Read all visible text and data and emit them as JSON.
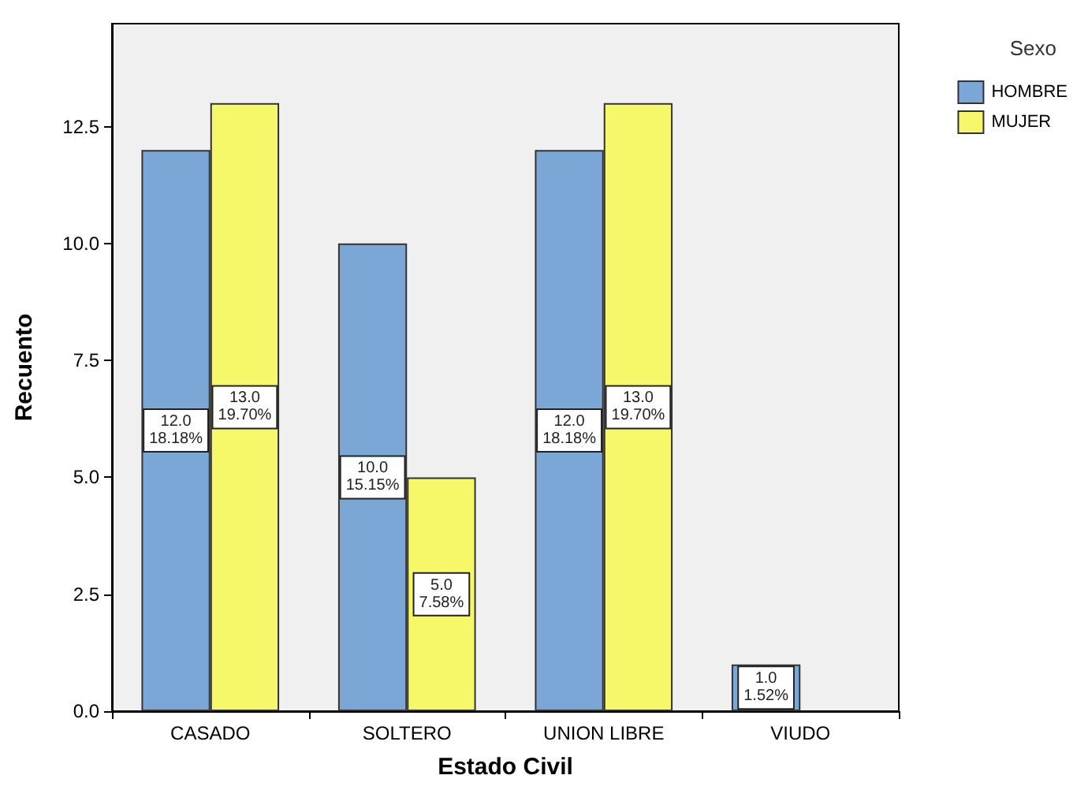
{
  "chart_data": {
    "type": "bar",
    "xlabel": "Estado Civil",
    "ylabel": "Recuento",
    "legend_title": "Sexo",
    "categories": [
      "CASADO",
      "SOLTERO",
      "UNION LIBRE",
      "VIUDO"
    ],
    "series": [
      {
        "name": "HOMBRE",
        "color": "#7ba7d6",
        "values": [
          12,
          10,
          12,
          1
        ],
        "value_labels": [
          "12.0\n18.18%",
          "10.0\n15.15%",
          "12.0\n18.18%",
          "1.0\n1.52%"
        ]
      },
      {
        "name": "MUJER",
        "color": "#f7f76a",
        "values": [
          13,
          5,
          13,
          null
        ],
        "value_labels": [
          "13.0\n19.70%",
          "5.0\n7.58%",
          "13.0\n19.70%",
          null
        ]
      }
    ],
    "ylim": [
      0,
      14.7
    ],
    "yticks": [
      {
        "value": 0,
        "label": "0.0"
      },
      {
        "value": 2.5,
        "label": "2.5"
      },
      {
        "value": 5,
        "label": "5.0"
      },
      {
        "value": 7.5,
        "label": "7.5"
      },
      {
        "value": 10,
        "label": "10.0"
      },
      {
        "value": 12.5,
        "label": "12.5"
      }
    ],
    "grid": false,
    "legend": "top right"
  }
}
